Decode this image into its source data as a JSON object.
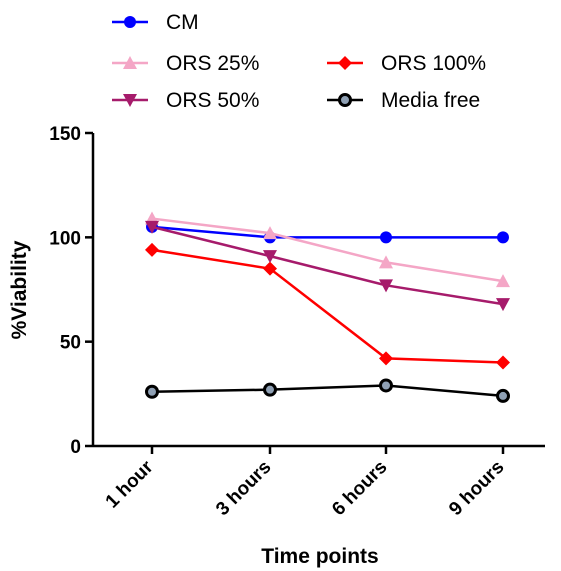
{
  "chart_data": {
    "type": "line",
    "categories": [
      "1 hour",
      "3 hours",
      "6 hours",
      "9 hours"
    ],
    "xlabel": "Time points",
    "ylabel": "%Viability",
    "ylim": [
      0,
      150
    ],
    "yticks": [
      0,
      50,
      100,
      150
    ],
    "grid": false,
    "legend_position": "top",
    "series": [
      {
        "name": "CM",
        "values": [
          105,
          100,
          100,
          100
        ],
        "color": "#0000ff",
        "marker": "circle"
      },
      {
        "name": "ORS 25%",
        "values": [
          109,
          102,
          88,
          79
        ],
        "color": "#f4a6c6",
        "marker": "triangle-up"
      },
      {
        "name": "ORS 50%",
        "values": [
          105,
          91,
          77,
          68
        ],
        "color": "#a61b6b",
        "marker": "triangle-down"
      },
      {
        "name": "ORS 100%",
        "values": [
          94,
          85,
          42,
          40
        ],
        "color": "#ff0000",
        "marker": "diamond"
      },
      {
        "name": "Media free",
        "values": [
          26,
          27,
          29,
          24
        ],
        "color": "#000000",
        "marker": "circle-open"
      }
    ]
  }
}
